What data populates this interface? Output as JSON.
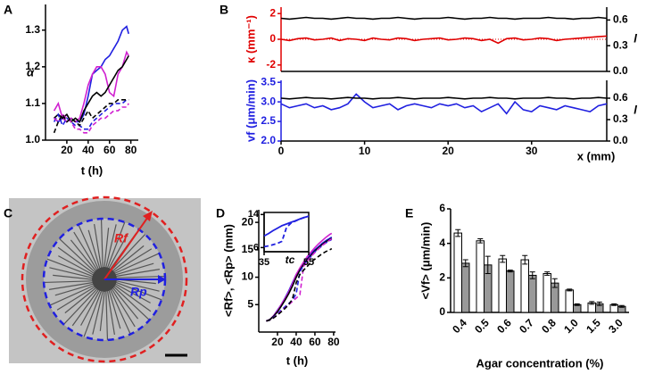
{
  "chart_data": [
    {
      "type": "line",
      "panel": "A",
      "xlabel": "t (h)",
      "ylabel": "α",
      "xlim": [
        0,
        87
      ],
      "ylim": [
        1,
        1.37
      ],
      "xticks": [
        20,
        40,
        60,
        80
      ],
      "yticks": [
        {
          "value": 1,
          "label": "1.0"
        },
        1.1,
        1.2,
        1.3
      ],
      "x": [
        8,
        12,
        16,
        20,
        24,
        28,
        32,
        36,
        40,
        44,
        48,
        52,
        56,
        60,
        64,
        68,
        72,
        76,
        78
      ],
      "series": [
        {
          "color": "#2020e0",
          "values": [
            1.06,
            1.05,
            1.06,
            1.05,
            1.06,
            1.05,
            1.05,
            1.07,
            1.12,
            1.18,
            1.19,
            1.2,
            1.22,
            1.23,
            1.25,
            1.27,
            1.3,
            1.31,
            1.29
          ]
        },
        {
          "color": "#d020d0",
          "values": [
            1.08,
            1.1,
            1.06,
            1.05,
            1.06,
            1.05,
            1.06,
            1.1,
            1.15,
            1.18,
            1.2,
            1.2,
            1.18,
            1.13,
            1.12,
            1.18,
            1.2,
            1.24,
            1.23
          ]
        },
        {
          "color": "#000000",
          "values": [
            1.06,
            1.07,
            1.06,
            1.07,
            1.05,
            1.06,
            1.05,
            1.08,
            1.1,
            1.12,
            1.13,
            1.12,
            1.13,
            1.15,
            1.17,
            1.19,
            1.2,
            1.22,
            1.23
          ]
        },
        {
          "color": "#2020e0",
          "dash": true,
          "values": [
            1.05,
            1.07,
            1.04,
            1.06,
            1.05,
            1.04,
            1.04,
            1.03,
            1.03,
            1.05,
            1.06,
            1.07,
            1.08,
            1.09,
            1.1,
            1.1,
            1.1,
            1.11,
            1.11
          ]
        },
        {
          "color": "#d020d0",
          "dash": true,
          "values": [
            1.06,
            1.05,
            1.07,
            1.06,
            1.05,
            1.03,
            1.03,
            1.02,
            1.02,
            1.04,
            1.05,
            1.06,
            1.06,
            1.07,
            1.08,
            1.08,
            1.09,
            1.09,
            1.1
          ]
        },
        {
          "color": "#000000",
          "dash": true,
          "values": [
            1.02,
            1.05,
            1.07,
            1.05,
            1.06,
            1.05,
            1.04,
            1.06,
            1.08,
            1.06,
            1.07,
            1.08,
            1.09,
            1.1,
            1.1,
            1.11,
            1.11,
            1.11,
            1.11
          ]
        }
      ]
    },
    {
      "type": "line",
      "panel": "B",
      "ylabel": "κ (mm⁻¹)",
      "ylabel_color": "#e00000",
      "y2label": "l",
      "zero_line": true,
      "xlim": [
        0,
        39
      ],
      "ylim": [
        -2.5,
        2.5
      ],
      "yticks": [
        -2,
        0,
        2
      ],
      "y2lim": [
        0,
        0.75
      ],
      "y2ticks": [
        {
          "value": 0,
          "label": "0.0"
        },
        0.3,
        0.6
      ],
      "x": [
        0,
        1,
        2,
        3,
        4,
        5,
        6,
        7,
        8,
        9,
        10,
        11,
        12,
        13,
        14,
        15,
        16,
        17,
        18,
        19,
        20,
        21,
        22,
        23,
        24,
        25,
        26,
        27,
        28,
        29,
        30,
        31,
        32,
        33,
        34,
        35,
        36,
        37,
        38,
        39
      ],
      "series": [
        {
          "color": "#e00000",
          "values": [
            0.0,
            -0.1,
            0.05,
            0.1,
            -0.05,
            0.0,
            0.1,
            -0.1,
            0.05,
            0.0,
            -0.1,
            0.1,
            0.0,
            -0.05,
            0.1,
            0.05,
            -0.1,
            0.0,
            0.05,
            0.1,
            -0.05,
            0.0,
            0.1,
            0.05,
            -0.1,
            0.0,
            -0.3,
            0.05,
            0.1,
            -0.05,
            0.0,
            0.1,
            0.05,
            -0.1,
            0.0,
            0.05,
            0.1,
            0.15,
            0.2,
            0.25
          ]
        },
        {
          "color": "#000000",
          "axis": "y2",
          "values": [
            0.62,
            0.61,
            0.62,
            0.63,
            0.62,
            0.62,
            0.61,
            0.62,
            0.63,
            0.62,
            0.62,
            0.61,
            0.62,
            0.62,
            0.63,
            0.62,
            0.61,
            0.62,
            0.62,
            0.62,
            0.63,
            0.62,
            0.61,
            0.62,
            0.62,
            0.63,
            0.62,
            0.62,
            0.61,
            0.62,
            0.62,
            0.62,
            0.63,
            0.62,
            0.62,
            0.61,
            0.62,
            0.62,
            0.63,
            0.62
          ]
        }
      ]
    },
    {
      "type": "line",
      "ylabel": "vf (μm/min)",
      "ylabel_color": "#2020e0",
      "y2label": "l",
      "xlabel": "x (mm)",
      "xlim": [
        0,
        39
      ],
      "ylim": [
        2,
        3.55
      ],
      "xticks": [
        0,
        10,
        20,
        30
      ],
      "yticks": [
        {
          "value": 2,
          "label": "2.0"
        },
        2.5,
        {
          "value": 3,
          "label": "3.0"
        },
        3.5
      ],
      "y2lim": [
        0,
        0.85
      ],
      "y2ticks": [
        {
          "value": 0,
          "label": "0.0"
        },
        0.3,
        0.6
      ],
      "x": [
        0,
        1,
        2,
        3,
        4,
        5,
        6,
        7,
        8,
        9,
        10,
        11,
        12,
        13,
        14,
        15,
        16,
        17,
        18,
        19,
        20,
        21,
        22,
        23,
        24,
        25,
        26,
        27,
        28,
        29,
        30,
        31,
        32,
        33,
        34,
        35,
        36,
        37,
        38,
        39
      ],
      "series": [
        {
          "color": "#2020e0",
          "values": [
            2.95,
            2.85,
            2.9,
            2.95,
            2.85,
            2.9,
            2.8,
            2.85,
            2.95,
            3.2,
            3.0,
            2.85,
            2.9,
            2.95,
            2.8,
            2.9,
            2.95,
            2.9,
            2.85,
            2.95,
            2.9,
            2.95,
            2.85,
            2.9,
            2.75,
            2.85,
            2.95,
            2.7,
            3.0,
            2.8,
            2.75,
            2.9,
            2.85,
            2.8,
            2.9,
            2.85,
            2.8,
            2.75,
            2.9,
            2.95
          ]
        },
        {
          "color": "#000000",
          "axis": "y2",
          "values": [
            0.6,
            0.59,
            0.6,
            0.61,
            0.6,
            0.6,
            0.59,
            0.6,
            0.61,
            0.6,
            0.6,
            0.59,
            0.6,
            0.6,
            0.61,
            0.6,
            0.59,
            0.6,
            0.6,
            0.6,
            0.61,
            0.6,
            0.59,
            0.6,
            0.6,
            0.61,
            0.6,
            0.6,
            0.59,
            0.6,
            0.6,
            0.6,
            0.61,
            0.6,
            0.6,
            0.59,
            0.6,
            0.6,
            0.61,
            0.6
          ]
        }
      ]
    },
    {
      "type": "line",
      "panel": "D",
      "xlabel": "t (h)",
      "ylabel": "<Rf>, <Rp> (mm)",
      "xlim": [
        0,
        82
      ],
      "ylim": [
        0,
        22.3
      ],
      "xticks": [
        20,
        40,
        60,
        80
      ],
      "yticks": [
        5,
        10,
        15,
        20
      ],
      "x": [
        8,
        12,
        16,
        20,
        24,
        28,
        32,
        36,
        40,
        44,
        48,
        52,
        56,
        60,
        64,
        68,
        72,
        76,
        78
      ],
      "series": [
        {
          "color": "#2020e0",
          "values": [
            2,
            2.3,
            3,
            4,
            5,
            6.2,
            7.5,
            9,
            10.5,
            11.5,
            12.5,
            13.5,
            14.3,
            15,
            15.6,
            16.2,
            16.7,
            17.1,
            17.3
          ]
        },
        {
          "color": "#d020d0",
          "values": [
            2,
            2.3,
            3,
            3.9,
            5,
            6.1,
            7.3,
            8.8,
            10.5,
            11.7,
            12.8,
            13.8,
            14.6,
            15.4,
            16.1,
            16.7,
            17.3,
            17.8,
            18
          ]
        },
        {
          "color": "#000000",
          "values": [
            2,
            2.3,
            2.9,
            3.7,
            4.7,
            5.8,
            7,
            8.4,
            10,
            11.3,
            12.3,
            13.2,
            14,
            14.8,
            15.4,
            16,
            16.5,
            16.9,
            17.1
          ]
        },
        {
          "color": "#2020e0",
          "dash": true,
          "values": [
            2,
            2.2,
            2.7,
            3.3,
            4,
            4.6,
            5.2,
            5.8,
            7,
            11,
            12.2,
            13,
            13.8,
            14.6,
            15.2,
            15.8,
            16.3,
            16.7,
            16.9
          ]
        },
        {
          "color": "#d020d0",
          "dash": true,
          "values": [
            2,
            2.2,
            2.6,
            3.2,
            3.8,
            4.4,
            5,
            5.6,
            6.2,
            6.8,
            12,
            13,
            13.8,
            14.5,
            15.2,
            15.8,
            16.3,
            16.8,
            17
          ]
        },
        {
          "color": "#000000",
          "dash": true,
          "values": [
            2,
            2.2,
            2.6,
            3.1,
            3.7,
            4.3,
            5,
            6,
            9,
            10.5,
            11.3,
            12,
            12.8,
            13.3,
            13.8,
            14.3,
            14.7,
            15,
            15.2
          ]
        }
      ]
    },
    {
      "type": "line",
      "frame": true,
      "annotation": "tc",
      "xlim": [
        35,
        55
      ],
      "ylim": [
        5,
        14.5
      ],
      "xticks": [
        35,
        55
      ],
      "yticks": [
        6,
        14
      ],
      "x": [
        35,
        37,
        39,
        41,
        43,
        45,
        47,
        49,
        51,
        53,
        55
      ],
      "series": [
        {
          "color": "#2020e0",
          "values": [
            8.8,
            9.4,
            10.1,
            10.7,
            11.3,
            11.7,
            12.1,
            12.5,
            12.9,
            13.3,
            13.6
          ]
        },
        {
          "color": "#2020e0",
          "dash": true,
          "values": [
            6.2,
            6.4,
            6.7,
            7.0,
            7.5,
            10.8,
            11.9,
            12.4,
            12.9,
            13.3,
            13.6
          ]
        }
      ]
    },
    {
      "type": "bar",
      "panel": "E",
      "xlabel": "Agar concentration (%)",
      "ylabel": "<Vf> (μm/min)",
      "ylim": [
        0,
        6
      ],
      "yticks": [
        0,
        2,
        4,
        6
      ],
      "categories": [
        "0.4",
        "0.5",
        "0.6",
        "0.7",
        "0.8",
        "1.0",
        "1.5",
        "3.0"
      ],
      "series": [
        {
          "color": "#ffffff",
          "values": [
            4.6,
            4.15,
            3.1,
            3.05,
            2.25,
            1.3,
            0.55,
            0.45
          ],
          "errors": [
            0.2,
            0.12,
            0.2,
            0.25,
            0.1,
            0.05,
            0.08,
            0.05
          ]
        },
        {
          "color": "#999999",
          "values": [
            2.85,
            2.75,
            2.4,
            2.15,
            1.7,
            0.45,
            0.5,
            0.35
          ],
          "errors": [
            0.2,
            0.5,
            0.05,
            0.2,
            0.25,
            0.05,
            0.1,
            0.05
          ]
        }
      ]
    }
  ],
  "panel_c": {
    "panel": "C",
    "labels": [
      "Rf",
      "Rp"
    ]
  }
}
